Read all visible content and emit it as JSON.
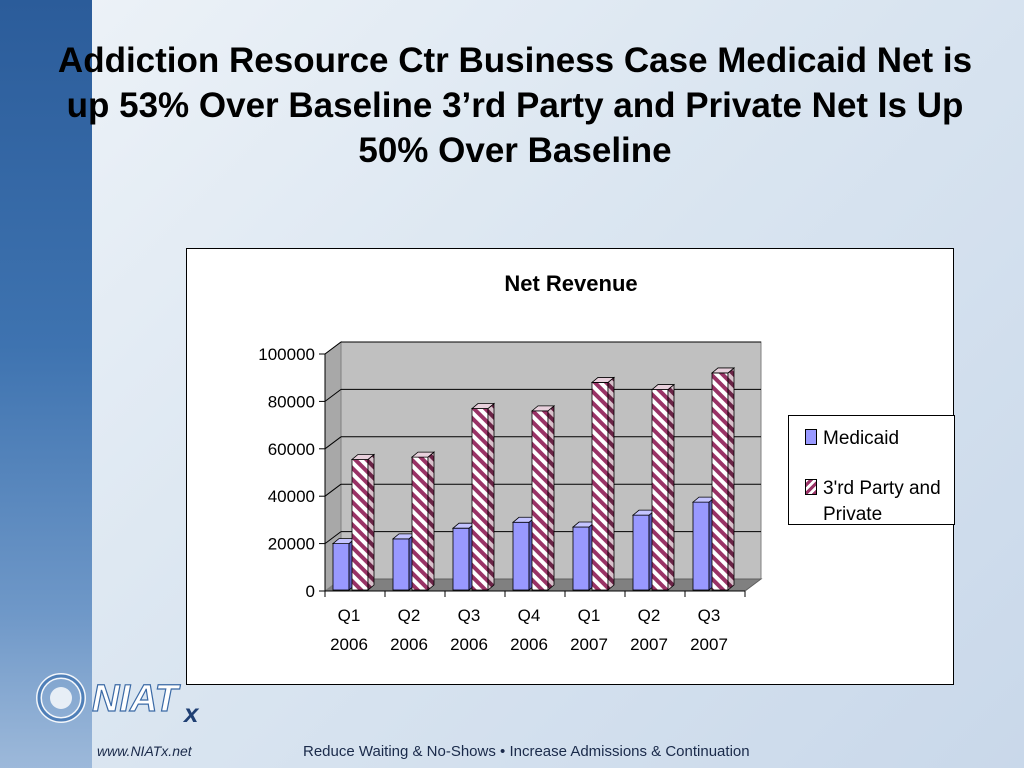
{
  "slide": {
    "title": "Addiction Resource Ctr Business Case Medicaid Net is up 53% Over Baseline  3’rd Party and Private Net Is Up 50% Over Baseline"
  },
  "footer": {
    "url": "www.NIATx.net",
    "tagline": "Reduce Waiting & No-Shows • Increase Admissions & Continuation",
    "logo_text": "NIATx"
  },
  "colors": {
    "medicaid": "#9999ff",
    "third_party": "#993366",
    "stripe": "#2b5c9a"
  },
  "chart_data": {
    "type": "bar",
    "title": "Net Revenue",
    "categories": [
      "Q1 2006",
      "Q2 2006",
      "Q3 2006",
      "Q4 2006",
      "Q1 2007",
      "Q2 2007",
      "Q3 2007"
    ],
    "category_lines": [
      [
        "Q1",
        "2006"
      ],
      [
        "Q2",
        "2006"
      ],
      [
        "Q3",
        "2006"
      ],
      [
        "Q4",
        "2006"
      ],
      [
        "Q1",
        "2007"
      ],
      [
        "Q2",
        "2007"
      ],
      [
        "Q3",
        "2007"
      ]
    ],
    "series": [
      {
        "name": "Medicaid",
        "values": [
          20000,
          22000,
          26500,
          29000,
          27000,
          32000,
          37500
        ]
      },
      {
        "name": "3'rd Party and Private",
        "values": [
          55500,
          56500,
          77000,
          76000,
          88000,
          85000,
          92000
        ]
      }
    ],
    "yticks": [
      "0",
      "20000",
      "40000",
      "60000",
      "80000",
      "100000"
    ],
    "ylim": [
      0,
      100000
    ],
    "grid": true,
    "legend_position": "right",
    "xlabel": "",
    "ylabel": ""
  }
}
